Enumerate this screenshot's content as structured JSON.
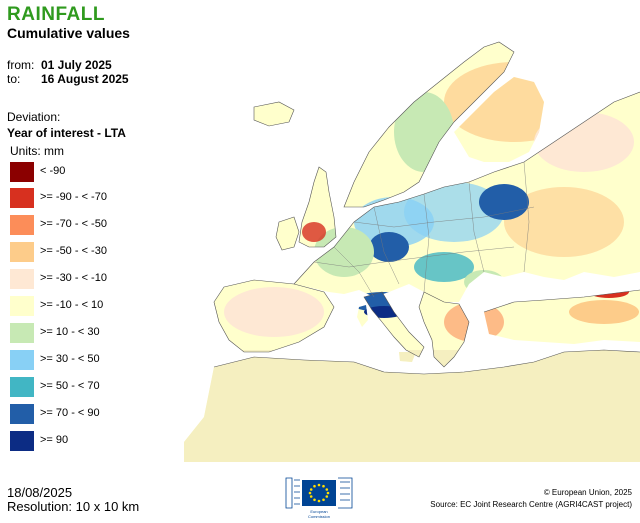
{
  "header": {
    "title": "RAINFALL",
    "subtitle": "Cumulative values"
  },
  "period": {
    "from_label": "from:",
    "from_value": "01 July 2025",
    "to_label": "to:",
    "to_value": "16 August 2025"
  },
  "deviation": {
    "label": "Deviation:",
    "year_of_interest": "Year of interest - LTA",
    "units": "Units: mm"
  },
  "legend": [
    {
      "label": "< -90",
      "color": "#8b0000"
    },
    {
      "label": ">= -90 - < -70",
      "color": "#d7301f"
    },
    {
      "label": ">= -70 - < -50",
      "color": "#fc8d59"
    },
    {
      "label": ">= -50 - < -30",
      "color": "#fdcc8a"
    },
    {
      "label": ">= -30 - < -10",
      "color": "#fee8d4"
    },
    {
      "label": ">= -10 - < 10",
      "color": "#ffffcc"
    },
    {
      "label": ">= 10 - < 30",
      "color": "#c7e9b4"
    },
    {
      "label": ">= 30 - < 50",
      "color": "#88d0f5"
    },
    {
      "label": ">= 50 - < 70",
      "color": "#41b6c4"
    },
    {
      "label": ">= 70 - < 90",
      "color": "#225ea8"
    },
    {
      "label": ">= 90",
      "color": "#0c2c84"
    }
  ],
  "footer": {
    "date": "18/08/2025",
    "resolution": "Resolution: 10 x 10 km",
    "copyright": "© European Union, 2025",
    "source": "Source: EC Joint Research Centre (AGRI4CAST project)",
    "logo_line1": "European",
    "logo_line2": "Commission"
  },
  "colors": {
    "title": "#2f9a1e",
    "sea": "#ffffff",
    "land_outside": "#f5efc0",
    "eu_blue": "#004494",
    "eu_star": "#ffdd00"
  }
}
